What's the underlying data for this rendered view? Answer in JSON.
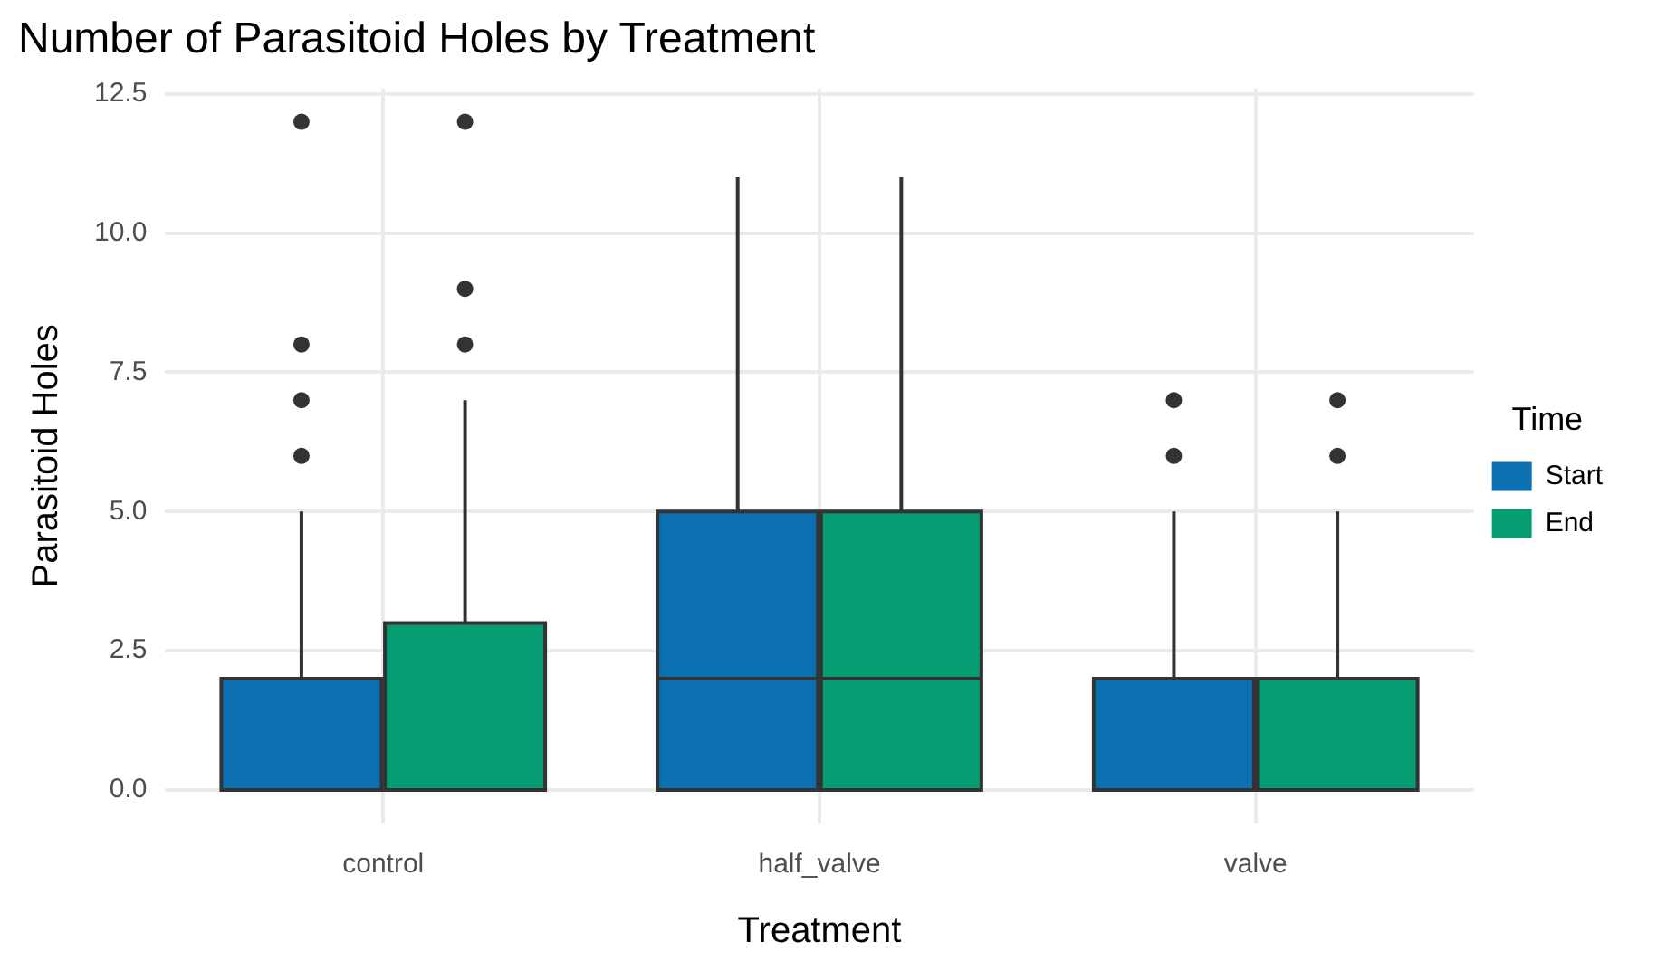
{
  "chart_data": {
    "type": "box",
    "title": "Number of Parasitoid Holes by Treatment",
    "xlabel": "Treatment",
    "ylabel": "Parasitoid Holes",
    "legend_title": "Time",
    "legend": "right",
    "grid": true,
    "categories": [
      "control",
      "half_valve",
      "valve"
    ],
    "ylim": [
      -0.6,
      12.6
    ],
    "yticks": [
      {
        "value": 0,
        "label": "0.0"
      },
      2.5,
      {
        "value": 5,
        "label": "5.0"
      },
      7.5,
      {
        "value": 10,
        "label": "10.0"
      },
      12.5
    ],
    "series": [
      {
        "name": "Start",
        "color": "#0a70b0",
        "boxes": [
          {
            "low": 0,
            "q1": 0,
            "median": 0,
            "q3": 2,
            "high": 5,
            "outliers": [
              6,
              7,
              8,
              12
            ]
          },
          {
            "low": 0,
            "q1": 0,
            "median": 2,
            "q3": 5,
            "high": 11
          },
          {
            "low": 0,
            "q1": 0,
            "median": 0,
            "q3": 2,
            "high": 5,
            "outliers": [
              6,
              7
            ]
          }
        ]
      },
      {
        "name": "End",
        "color": "#069d72",
        "boxes": [
          {
            "low": 0,
            "q1": 0,
            "median": 0,
            "q3": 3,
            "high": 7,
            "outliers": [
              8,
              9,
              12
            ]
          },
          {
            "low": 0,
            "q1": 0,
            "median": 2,
            "q3": 5,
            "high": 11
          },
          {
            "low": 0,
            "q1": 0,
            "median": 0,
            "q3": 2,
            "high": 5,
            "outliers": [
              6,
              7
            ]
          }
        ]
      }
    ]
  }
}
